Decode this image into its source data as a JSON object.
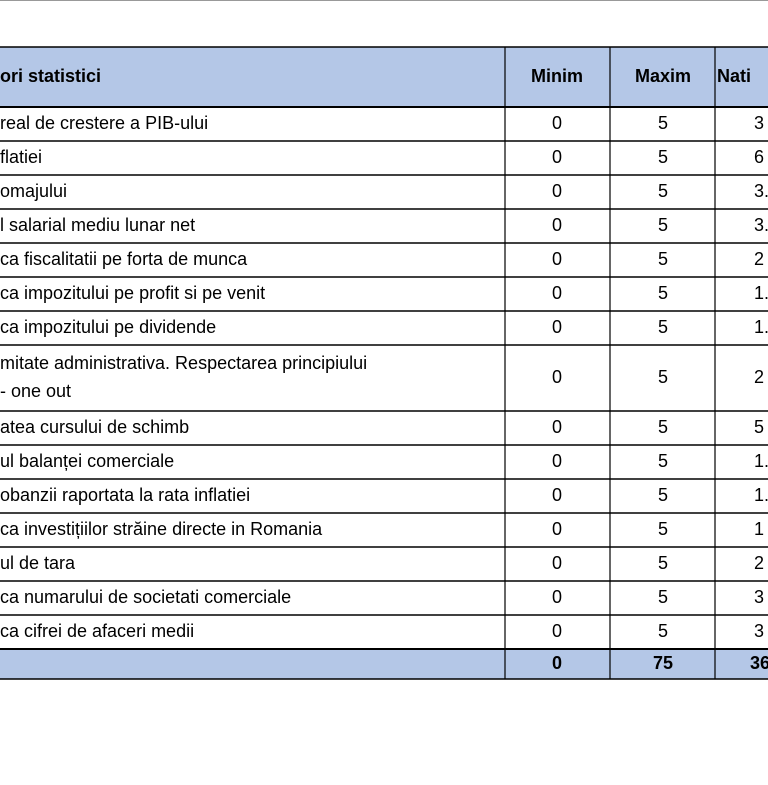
{
  "table": {
    "header": [
      "ori statistici",
      "Minim",
      "Maxim",
      "Nati"
    ],
    "rows": [
      [
        [
          "real de crestere a PIB-ului"
        ],
        0,
        5,
        "3"
      ],
      [
        [
          "flatiei"
        ],
        0,
        5,
        "6"
      ],
      [
        [
          "omajului"
        ],
        0,
        5,
        "3."
      ],
      [
        [
          "l salarial mediu lunar net"
        ],
        0,
        5,
        "3."
      ],
      [
        [
          "ca fiscalitatii pe forta de munca"
        ],
        0,
        5,
        "2"
      ],
      [
        [
          "ca impozitului pe profit si pe venit"
        ],
        0,
        5,
        "1."
      ],
      [
        [
          "ca impozitului pe dividende"
        ],
        0,
        5,
        "1."
      ],
      [
        [
          "mitate administrativa. Respectarea principiului",
          "- one out"
        ],
        0,
        5,
        "2"
      ],
      [
        [
          "atea cursului de schimb"
        ],
        0,
        5,
        "5"
      ],
      [
        [
          "ul balanței comerciale"
        ],
        0,
        5,
        "1."
      ],
      [
        [
          "obanzii raportata la rata inflatiei"
        ],
        0,
        5,
        "1."
      ],
      [
        [
          "ca investițiilor străine directe in Romania"
        ],
        0,
        5,
        "1"
      ],
      [
        [
          "ul de tara"
        ],
        0,
        5,
        "2"
      ],
      [
        [
          "ca numarului de societati comerciale"
        ],
        0,
        5,
        "3"
      ],
      [
        [
          "ca cifrei de afaceri medii"
        ],
        0,
        5,
        "3"
      ]
    ],
    "total": [
      0,
      75,
      36
    ]
  }
}
